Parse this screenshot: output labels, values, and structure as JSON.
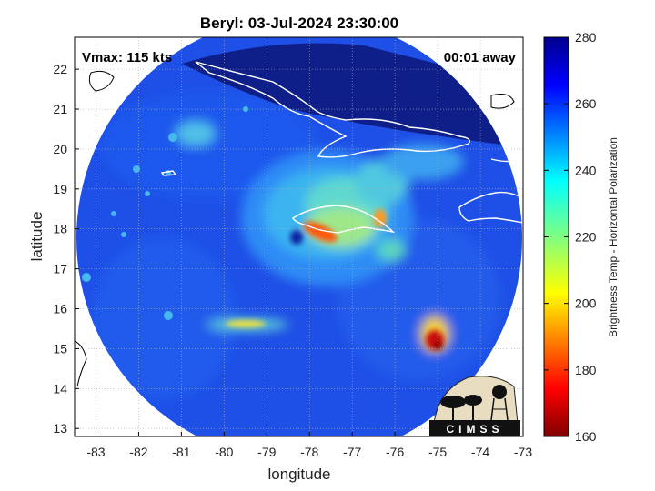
{
  "title": "Beryl: 03-Jul-2024 23:30:00",
  "vmax_label": "Vmax: 115 kts",
  "time_offset_label": "00:01 away",
  "logo_text": "CIMSS",
  "chart_data": {
    "type": "heatmap",
    "xlabel": "longitude",
    "ylabel": "latitude",
    "xlim": [
      -83.5,
      -73
    ],
    "ylim": [
      12.8,
      22.8
    ],
    "xticks": [
      -83,
      -82,
      -81,
      -80,
      -79,
      -78,
      -77,
      -76,
      -75,
      -74,
      -73
    ],
    "yticks": [
      13,
      14,
      15,
      16,
      17,
      18,
      19,
      20,
      21,
      22
    ],
    "grid": true,
    "swath_center": {
      "lon": -78.2,
      "lat": 17.8
    },
    "storm_center": {
      "lon": -78.3,
      "lat": 17.85
    },
    "colorbar": {
      "label": "Brightness Temp - Horizontal Polarization",
      "min": 160,
      "max": 280,
      "ticks": [
        160,
        180,
        200,
        220,
        240,
        260,
        280
      ],
      "colormap": "jet",
      "placement": "right"
    },
    "features": [
      {
        "name": "eyewall",
        "lon": -78.1,
        "lat": 17.9,
        "tb": 195
      },
      {
        "name": "inner-core",
        "lon": -77.7,
        "lat": 18.3,
        "tb": 238
      },
      {
        "name": "southwest-rainband",
        "lon": -79.3,
        "lat": 15.6,
        "tb": 215
      },
      {
        "name": "southeast-cell",
        "lon": -74.9,
        "lat": 15.2,
        "tb": 172
      },
      {
        "name": "northwest-cell",
        "lon": -80.6,
        "lat": 20.3,
        "tb": 235
      }
    ]
  }
}
